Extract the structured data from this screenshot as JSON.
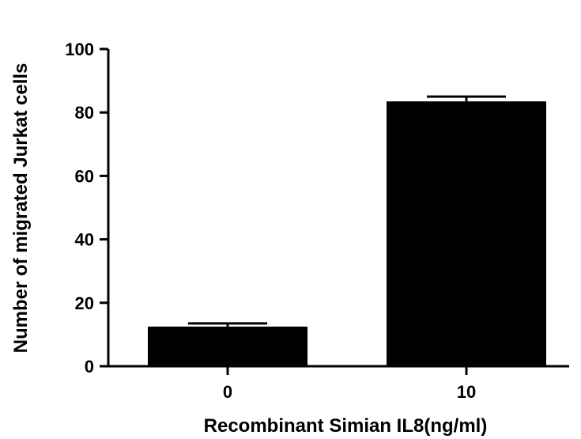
{
  "chart_data": {
    "type": "bar",
    "categories": [
      "0",
      "10"
    ],
    "values": [
      12.5,
      83.5
    ],
    "errors": [
      1.0,
      1.5
    ],
    "xlabel": "Recombinant Simian IL8(ng/ml)",
    "ylabel": "Number of migrated Jurkat cells",
    "ylim": [
      0,
      100
    ],
    "yticks": [
      0,
      20,
      40,
      60,
      80,
      100
    ],
    "bar_color": "#000000",
    "grid": false
  }
}
